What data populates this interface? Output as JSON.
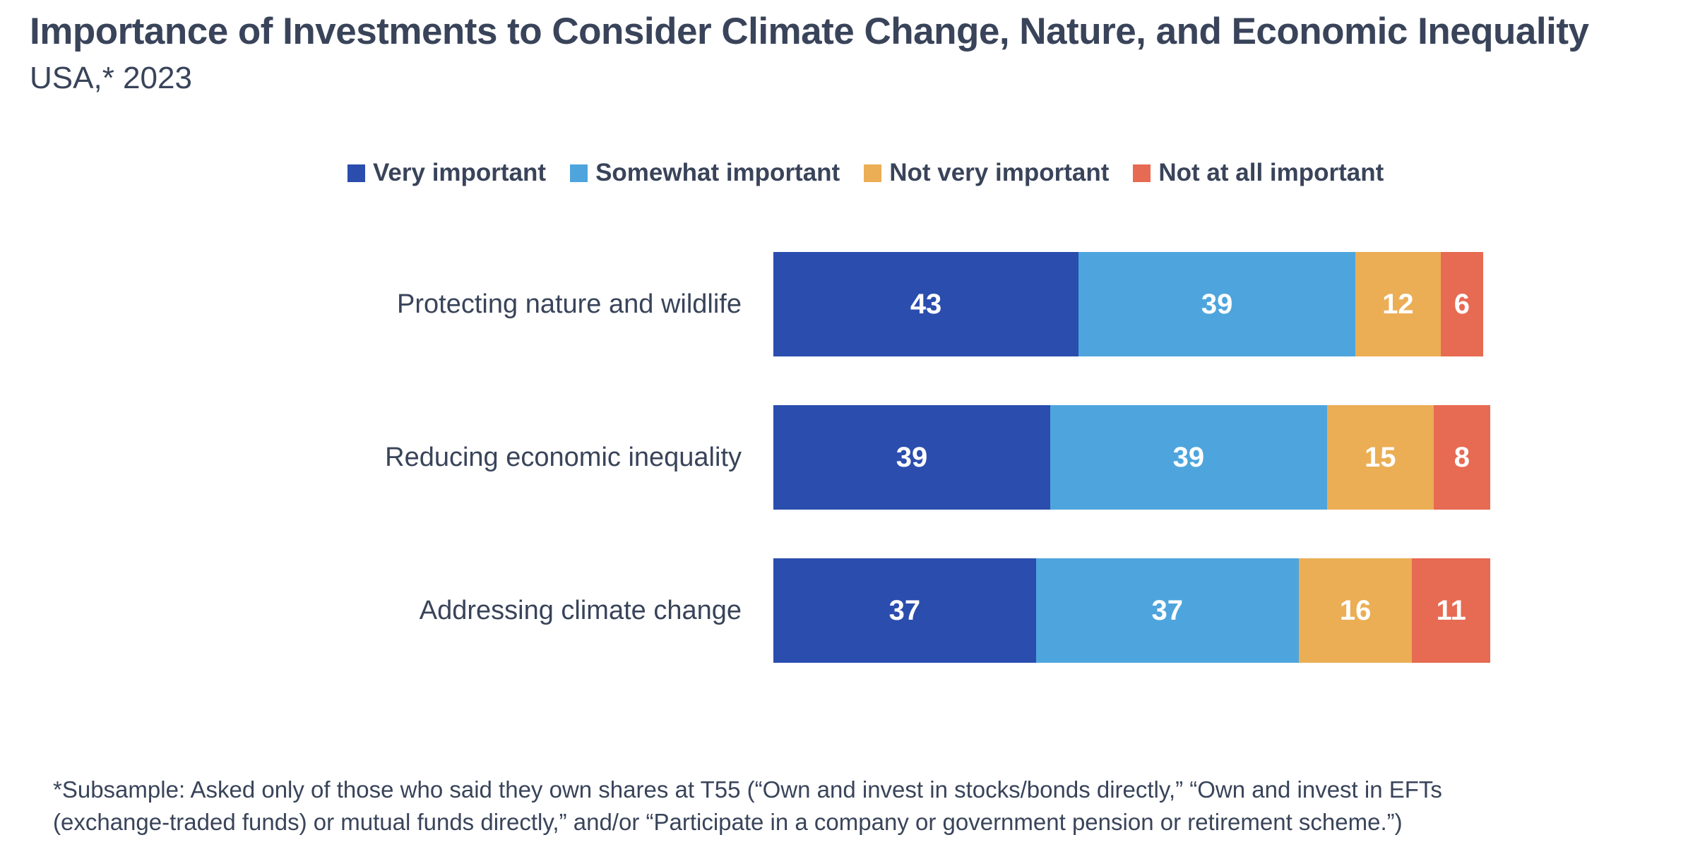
{
  "page": {
    "title": "Importance of Investments to Consider Climate Change, Nature, and Economic Inequality",
    "subtitle": "USA,* 2023",
    "footnote_line1": "*Subsample: Asked only of those who said they own shares at T55 (“Own and invest in stocks/bonds directly,” “Own and invest in EFTs",
    "footnote_line2": "(exchange-traded funds) or mutual funds directly,” and/or “Participate in a company or government pension or retirement scheme.”)"
  },
  "colors": {
    "text": "#39445A",
    "very_important": "#2B4DAE",
    "somewhat_important": "#4EA5DD",
    "not_very_important": "#EBAE55",
    "not_at_all_important": "#E76A52",
    "value_label": "#FFFFFF",
    "background": "#FFFFFF"
  },
  "chart_data": {
    "type": "bar",
    "orientation": "horizontal",
    "stacked": true,
    "title": "Importance of Investments to Consider Climate Change, Nature, and Economic Inequality",
    "subtitle": "USA,* 2023",
    "categories": [
      "Protecting nature and wildlife",
      "Reducing economic inequality",
      "Addressing climate change"
    ],
    "series": [
      {
        "name": "Very important",
        "color": "#2B4DAE",
        "values": [
          43,
          39,
          37
        ]
      },
      {
        "name": "Somewhat important",
        "color": "#4EA5DD",
        "values": [
          39,
          39,
          37
        ]
      },
      {
        "name": "Not very important",
        "color": "#EBAE55",
        "values": [
          12,
          15,
          16
        ]
      },
      {
        "name": "Not at all important",
        "color": "#E76A52",
        "values": [
          6,
          8,
          11
        ]
      }
    ],
    "value_unit": "percent",
    "data_labels": "inside-center",
    "legend_position": "top",
    "grid": false,
    "axes_hidden": true,
    "xlim": [
      0,
      101
    ]
  }
}
